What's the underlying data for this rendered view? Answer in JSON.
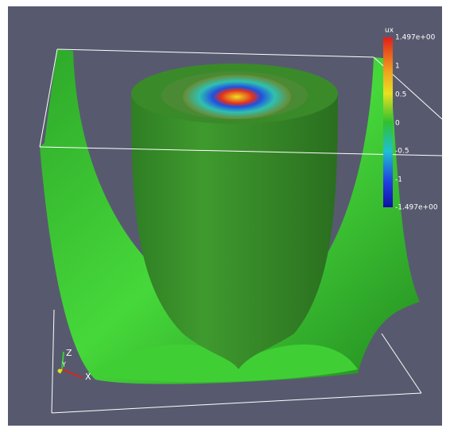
{
  "color_legend": {
    "title": "ux",
    "labels": [
      "1.497e+00",
      "1",
      "0.5",
      "0",
      "-0.5",
      "-1",
      "-1.497e+00"
    ]
  },
  "axes": {
    "z": "Z",
    "y": "Y",
    "x": "X"
  }
}
